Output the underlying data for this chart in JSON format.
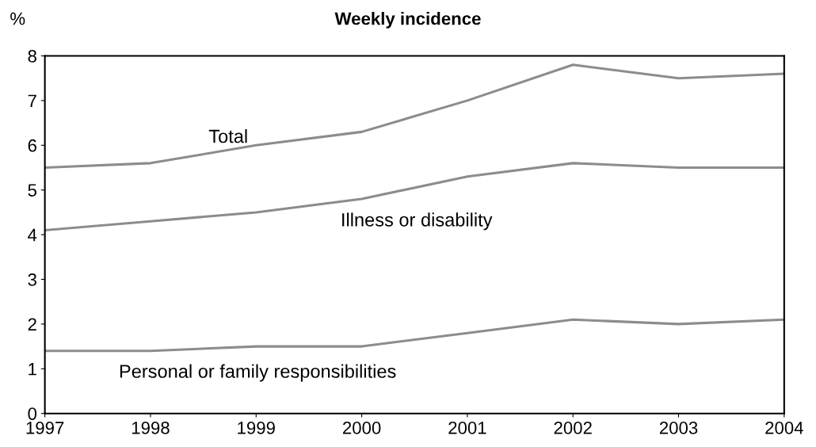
{
  "chart_data": {
    "type": "line",
    "title": "Weekly incidence",
    "ylabel": "%",
    "x": [
      1997,
      1998,
      1999,
      2000,
      2001,
      2002,
      2003,
      2004
    ],
    "series": [
      {
        "name": "Total",
        "color": "#8c8c8c",
        "values": [
          5.5,
          5.6,
          6.0,
          6.3,
          7.0,
          7.8,
          7.5,
          7.6
        ]
      },
      {
        "name": "Illness or disability",
        "color": "#8c8c8c",
        "values": [
          4.1,
          4.3,
          4.5,
          4.8,
          5.3,
          5.6,
          5.5,
          5.5
        ]
      },
      {
        "name": "Personal or family responsibilities",
        "color": "#8c8c8c",
        "values": [
          1.4,
          1.4,
          1.5,
          1.5,
          1.8,
          2.1,
          2.0,
          2.1
        ]
      }
    ],
    "xlim": [
      1997,
      2004
    ],
    "xticks": [
      1997,
      1998,
      1999,
      2000,
      2001,
      2002,
      2003,
      2004
    ],
    "ylim": [
      0,
      8
    ],
    "yticks": [
      0,
      1,
      2,
      3,
      4,
      5,
      6,
      7,
      8
    ],
    "grid": false,
    "marker": "none",
    "line_style": "solid"
  }
}
